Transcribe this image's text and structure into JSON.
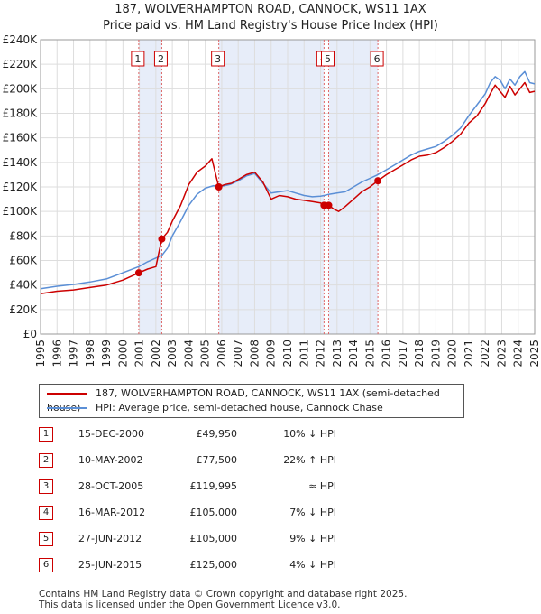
{
  "title_line1": "187, WOLVERHAMPTON ROAD, CANNOCK, WS11 1AX",
  "title_line2": "Price paid vs. HM Land Registry's House Price Index (HPI)",
  "legend": {
    "series1": "187, WOLVERHAMPTON ROAD, CANNOCK, WS11 1AX (semi-detached house)",
    "series2": "HPI: Average price, semi-detached house, Cannock Chase"
  },
  "sales": [
    {
      "num": "1",
      "date": "15-DEC-2000",
      "price": "£49,950",
      "rel": "10% ↓ HPI"
    },
    {
      "num": "2",
      "date": "10-MAY-2002",
      "price": "£77,500",
      "rel": "22% ↑ HPI"
    },
    {
      "num": "3",
      "date": "28-OCT-2005",
      "price": "£119,995",
      "rel": "≈ HPI"
    },
    {
      "num": "4",
      "date": "16-MAR-2012",
      "price": "£105,000",
      "rel": "7% ↓ HPI"
    },
    {
      "num": "5",
      "date": "27-JUN-2012",
      "price": "£105,000",
      "rel": "9% ↓ HPI"
    },
    {
      "num": "6",
      "date": "25-JUN-2015",
      "price": "£125,000",
      "rel": "4% ↓ HPI"
    }
  ],
  "footer_line1": "Contains HM Land Registry data © Crown copyright and database right 2025.",
  "footer_line2": "This data is licensed under the Open Government Licence v3.0.",
  "colors": {
    "property": "#cc0000",
    "hpi": "#5b8fd6",
    "shade": "#dde6f7"
  },
  "chart_data": {
    "type": "line",
    "xlim": [
      1995,
      2025
    ],
    "ylim": [
      0,
      240000
    ],
    "x_ticks": [
      "1995",
      "1996",
      "1997",
      "1998",
      "1999",
      "2000",
      "2001",
      "2002",
      "2003",
      "2004",
      "2005",
      "2006",
      "2007",
      "2008",
      "2009",
      "2010",
      "2011",
      "2012",
      "2013",
      "2014",
      "2015",
      "2016",
      "2017",
      "2018",
      "2019",
      "2020",
      "2021",
      "2022",
      "2023",
      "2024",
      "2025"
    ],
    "y_ticks": [
      "£0",
      "£20K",
      "£40K",
      "£60K",
      "£80K",
      "£100K",
      "£120K",
      "£140K",
      "£160K",
      "£180K",
      "£200K",
      "£220K",
      "£240K"
    ],
    "grid": true,
    "legend_position": "below",
    "shaded_periods": [
      [
        2000.96,
        2002.36
      ],
      [
        2005.82,
        2012.21
      ],
      [
        2012.49,
        2015.48
      ]
    ],
    "markers": [
      {
        "label": "1",
        "x": 2000.96,
        "y": 49950
      },
      {
        "label": "2",
        "x": 2002.36,
        "y": 77500
      },
      {
        "label": "3",
        "x": 2005.82,
        "y": 119995
      },
      {
        "label": "4",
        "x": 2012.21,
        "y": 105000
      },
      {
        "label": "5",
        "x": 2012.49,
        "y": 105000
      },
      {
        "label": "6",
        "x": 2015.48,
        "y": 125000
      }
    ],
    "series": [
      {
        "name": "187, WOLVERHAMPTON ROAD, CANNOCK, WS11 1AX (semi-detached house)",
        "x": [
          1995,
          1996,
          1997,
          1998,
          1999,
          2000,
          2000.96,
          2001.5,
          2002.0,
          2002.36,
          2002.7,
          2003,
          2003.5,
          2004,
          2004.5,
          2005,
          2005.4,
          2005.6,
          2005.82,
          2006.2,
          2006.6,
          2007,
          2007.5,
          2008,
          2008.5,
          2009,
          2009.5,
          2010,
          2010.5,
          2011,
          2011.5,
          2012.0,
          2012.21,
          2012.49,
          2012.8,
          2013.1,
          2013.5,
          2014,
          2014.5,
          2015,
          2015.48,
          2016,
          2016.5,
          2017,
          2017.5,
          2018,
          2018.5,
          2019,
          2019.5,
          2020,
          2020.5,
          2021,
          2021.5,
          2022,
          2022.3,
          2022.6,
          2022.9,
          2023.2,
          2023.5,
          2023.8,
          2024.1,
          2024.4,
          2024.7,
          2025
        ],
        "y": [
          33000,
          35000,
          36000,
          38000,
          40000,
          44000,
          49950,
          53000,
          55000,
          77500,
          83000,
          92000,
          105000,
          122000,
          132000,
          137000,
          143000,
          132000,
          119995,
          122000,
          123000,
          126000,
          130000,
          132000,
          124000,
          110000,
          113000,
          112000,
          110000,
          109000,
          108000,
          107000,
          105000,
          105000,
          102000,
          100000,
          104000,
          110000,
          116000,
          120000,
          125000,
          130000,
          134000,
          138000,
          142000,
          145000,
          146000,
          148000,
          152000,
          157000,
          163000,
          172000,
          178000,
          188000,
          196000,
          203000,
          198000,
          193000,
          202000,
          195000,
          200000,
          205000,
          197000,
          198000
        ]
      },
      {
        "name": "HPI: Average price, semi-detached house, Cannock Chase",
        "x": [
          1995,
          1996,
          1997,
          1998,
          1999,
          2000,
          2000.96,
          2001.5,
          2002.0,
          2002.36,
          2002.7,
          2003,
          2003.5,
          2004,
          2004.5,
          2005,
          2005.5,
          2005.82,
          2006.5,
          2007,
          2007.5,
          2008,
          2008.5,
          2009,
          2009.5,
          2010,
          2010.5,
          2011,
          2011.5,
          2012.0,
          2012.21,
          2012.49,
          2013,
          2013.5,
          2014,
          2014.5,
          2015,
          2015.48,
          2016,
          2016.5,
          2017,
          2017.5,
          2018,
          2018.5,
          2019,
          2019.5,
          2020,
          2020.5,
          2021,
          2021.5,
          2022,
          2022.3,
          2022.6,
          2022.9,
          2023.2,
          2023.5,
          2023.8,
          2024.1,
          2024.4,
          2024.7,
          2025
        ],
        "y": [
          37000,
          39000,
          40500,
          42500,
          45000,
          50000,
          55000,
          59000,
          62000,
          64000,
          70000,
          80000,
          92000,
          105000,
          114000,
          119000,
          121000,
          120000,
          122000,
          125000,
          129000,
          131000,
          123000,
          115000,
          116000,
          117000,
          115000,
          113000,
          112000,
          112500,
          113000,
          114000,
          115000,
          116000,
          120000,
          124000,
          127000,
          130000,
          134000,
          138000,
          142000,
          146000,
          149000,
          151000,
          153000,
          157000,
          162000,
          168000,
          178000,
          187000,
          196000,
          205000,
          210000,
          207000,
          200000,
          208000,
          203000,
          210000,
          214000,
          205000,
          204000
        ]
      }
    ]
  }
}
